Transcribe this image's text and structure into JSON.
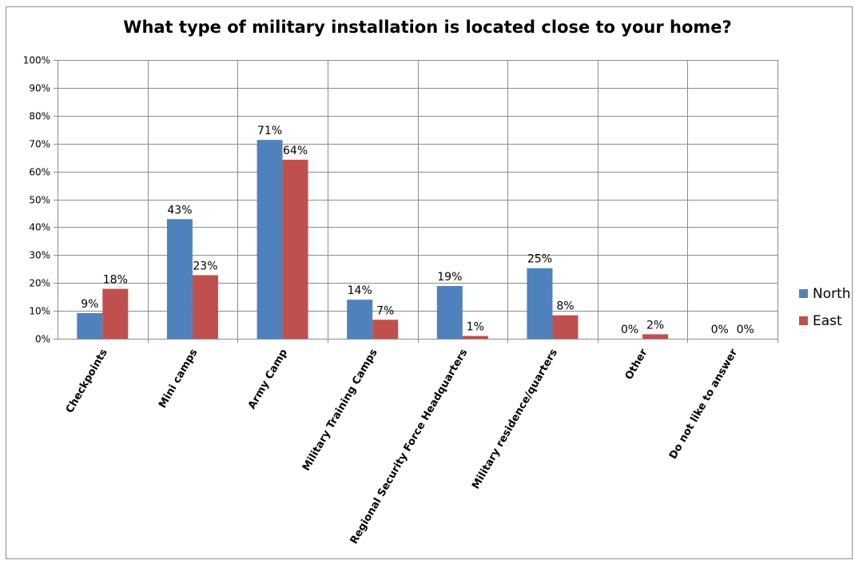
{
  "chart_data": {
    "type": "bar",
    "title": "What type of military installation is located close to your home?",
    "xlabel": "",
    "ylabel": "",
    "ylim": [
      0,
      100
    ],
    "ytick_labels": [
      "0%",
      "10%",
      "20%",
      "30%",
      "40%",
      "50%",
      "60%",
      "70%",
      "80%",
      "90%",
      "100%"
    ],
    "categories": [
      "Checkpoints",
      "Mini camps",
      "Army Camp",
      "Military Training Camps",
      "Regional Security Force Headquarters",
      "Military residence/quarters",
      "Other",
      "Do not like to answer"
    ],
    "series": [
      {
        "name": "North",
        "color": "#4f81bd",
        "values": [
          9,
          43,
          71,
          14,
          19,
          25,
          0,
          0
        ],
        "value_precise": [
          9.2,
          42.9,
          71.3,
          14.0,
          18.9,
          25.3,
          0,
          0
        ],
        "data_labels": [
          "9%",
          "43%",
          "71%",
          "14%",
          "19%",
          "25%",
          "0%",
          "0%"
        ]
      },
      {
        "name": "East",
        "color": "#c0504d",
        "values": [
          18,
          23,
          64,
          7,
          1,
          8,
          2,
          0
        ],
        "value_precise": [
          17.9,
          22.8,
          64.2,
          6.8,
          1.0,
          8.4,
          1.6,
          0
        ],
        "data_labels": [
          "18%",
          "23%",
          "64%",
          "7%",
          "1%",
          "8%",
          "2%",
          "0%"
        ]
      }
    ],
    "grid": true,
    "legend_position": "right"
  }
}
